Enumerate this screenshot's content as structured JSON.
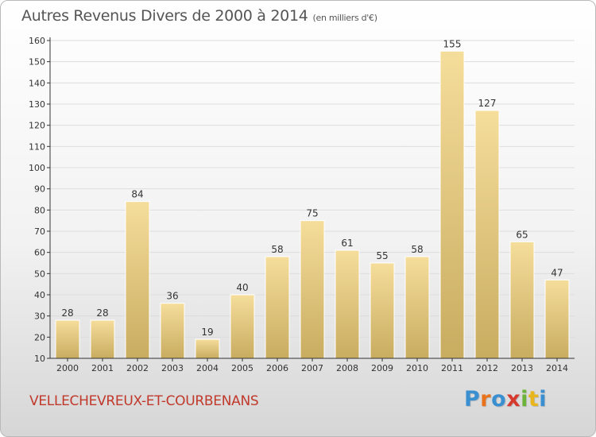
{
  "title": {
    "main": "Autres Revenus Divers de 2000 à 2014",
    "unit": "(en milliers d'€)"
  },
  "commune": "VELLECHEVREUX-ET-COURBENANS",
  "logo": {
    "text": "Proxiti",
    "colors": [
      "#3a8fd1",
      "#e8731c",
      "#3a8fd1",
      "#d63a2f",
      "#6bb33a",
      "#e8b61c",
      "#3a8fd1"
    ]
  },
  "colors": {
    "bar_light": "#f5dd9b",
    "bar_dark": "#c8ac60",
    "grid": "#dddddd",
    "axis": "#333333",
    "text": "#333333",
    "commune": "#c0392b"
  },
  "chart_data": {
    "type": "bar",
    "title": "Autres Revenus Divers de 2000 à 2014",
    "ylabel": "",
    "xlabel": "",
    "categories": [
      "2000",
      "2001",
      "2002",
      "2003",
      "2004",
      "2005",
      "2006",
      "2007",
      "2008",
      "2009",
      "2010",
      "2011",
      "2012",
      "2013",
      "2014"
    ],
    "values": [
      28,
      28,
      84,
      36,
      19,
      40,
      58,
      75,
      61,
      55,
      58,
      155,
      127,
      65,
      47
    ],
    "ylim": [
      10,
      160
    ],
    "yticks": [
      10,
      20,
      30,
      40,
      50,
      60,
      70,
      80,
      90,
      100,
      110,
      120,
      130,
      140,
      150,
      160
    ],
    "grid": "horizontal",
    "data_labels": true
  }
}
